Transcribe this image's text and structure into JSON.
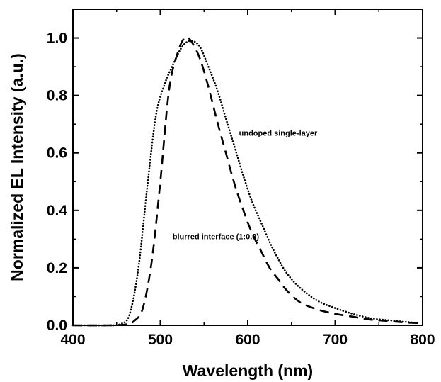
{
  "chart_data": {
    "type": "line",
    "title": "",
    "xlabel": "Wavelength (nm)",
    "ylabel": "Normalized EL Intensity (a.u.)",
    "xlim": [
      400,
      800
    ],
    "ylim": [
      0.0,
      1.1
    ],
    "x_ticks": [
      "400",
      "500",
      "600",
      "700",
      "800"
    ],
    "y_ticks": [
      "0.0",
      "0.2",
      "0.4",
      "0.6",
      "0.8",
      "1.0"
    ],
    "grid": false,
    "legend": "none",
    "series": [
      {
        "style": "dotted",
        "color": "#000000",
        "x": [
          400,
          420,
          440,
          455,
          465,
          475,
          485,
          495,
          505,
          515,
          525,
          535,
          545,
          555,
          565,
          575,
          585,
          595,
          605,
          615,
          625,
          635,
          645,
          660,
          680,
          700,
          720,
          740,
          760,
          780,
          795
        ],
        "y": [
          0.0,
          0.0,
          0.0,
          0.005,
          0.04,
          0.2,
          0.48,
          0.73,
          0.84,
          0.91,
          0.97,
          0.99,
          0.97,
          0.9,
          0.82,
          0.72,
          0.62,
          0.52,
          0.43,
          0.36,
          0.29,
          0.23,
          0.18,
          0.13,
          0.085,
          0.06,
          0.04,
          0.025,
          0.018,
          0.012,
          0.008
        ]
      },
      {
        "style": "dashed",
        "color": "#000000",
        "x": [
          400,
          440,
          460,
          470,
          480,
          490,
          500,
          510,
          520,
          528,
          535,
          545,
          555,
          565,
          575,
          585,
          595,
          605,
          615,
          625,
          635,
          645,
          660,
          680,
          700,
          720,
          740,
          760,
          780,
          795
        ],
        "y": [
          0.0,
          0.0,
          0.003,
          0.015,
          0.06,
          0.22,
          0.5,
          0.82,
          0.95,
          1.0,
          0.99,
          0.93,
          0.83,
          0.71,
          0.6,
          0.49,
          0.4,
          0.32,
          0.26,
          0.2,
          0.16,
          0.12,
          0.08,
          0.055,
          0.04,
          0.03,
          0.02,
          0.015,
          0.01,
          0.008
        ]
      }
    ],
    "annotations": [
      {
        "text": "undoped single-layer",
        "x": 590,
        "y": 0.66
      },
      {
        "text": "blurred interface (1:0.8)",
        "x": 514,
        "y": 0.3
      }
    ]
  }
}
